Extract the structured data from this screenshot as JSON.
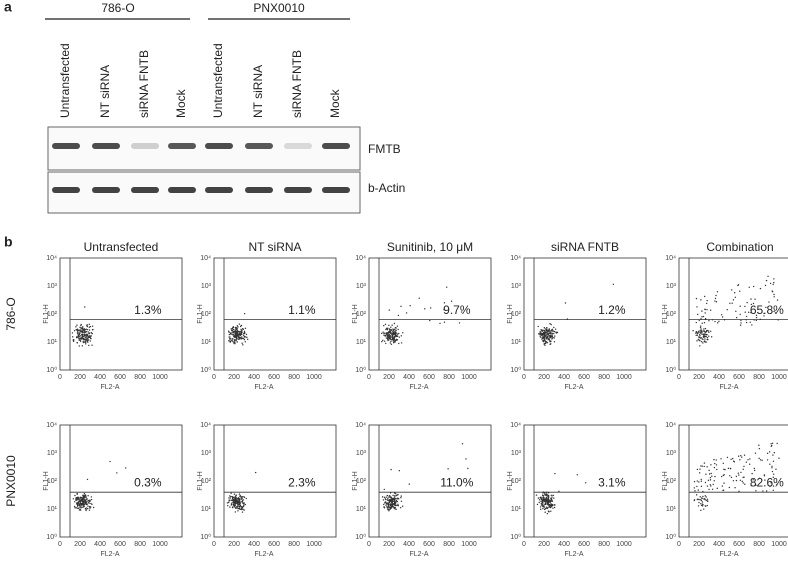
{
  "panel_a": {
    "label": "a",
    "groups": [
      "786-O",
      "PNX0010"
    ],
    "lanes": [
      "Untransfected",
      "NT siRNA",
      "siRNA FNTB",
      "Mock",
      "Untransfected",
      "NT siRNA",
      "siRNA FNTB",
      "Mock"
    ],
    "blots": [
      "FMTB",
      "b-Actin"
    ]
  },
  "panel_b": {
    "label": "b",
    "columns": [
      "Untransfected",
      "NT siRNA",
      "Sunitinib, 10 μM",
      "siRNA FNTB",
      "Combination"
    ],
    "rows": [
      {
        "label": "786-O",
        "percentages": [
          "1.3%",
          "1.1%",
          "9.7%",
          "1.2%",
          "65.8%"
        ]
      },
      {
        "label": "PNX0010",
        "percentages": [
          "0.3%",
          "2.3%",
          "11.0%",
          "3.1%",
          "82.6%"
        ]
      }
    ],
    "x_label": "FL2-A",
    "y_label": "FL1-H",
    "x_ticks": [
      "0",
      "200",
      "400",
      "600",
      "800",
      "1000"
    ],
    "y_ticks": [
      "10⁰",
      "10¹",
      "10²",
      "10³",
      "10⁴"
    ]
  }
}
